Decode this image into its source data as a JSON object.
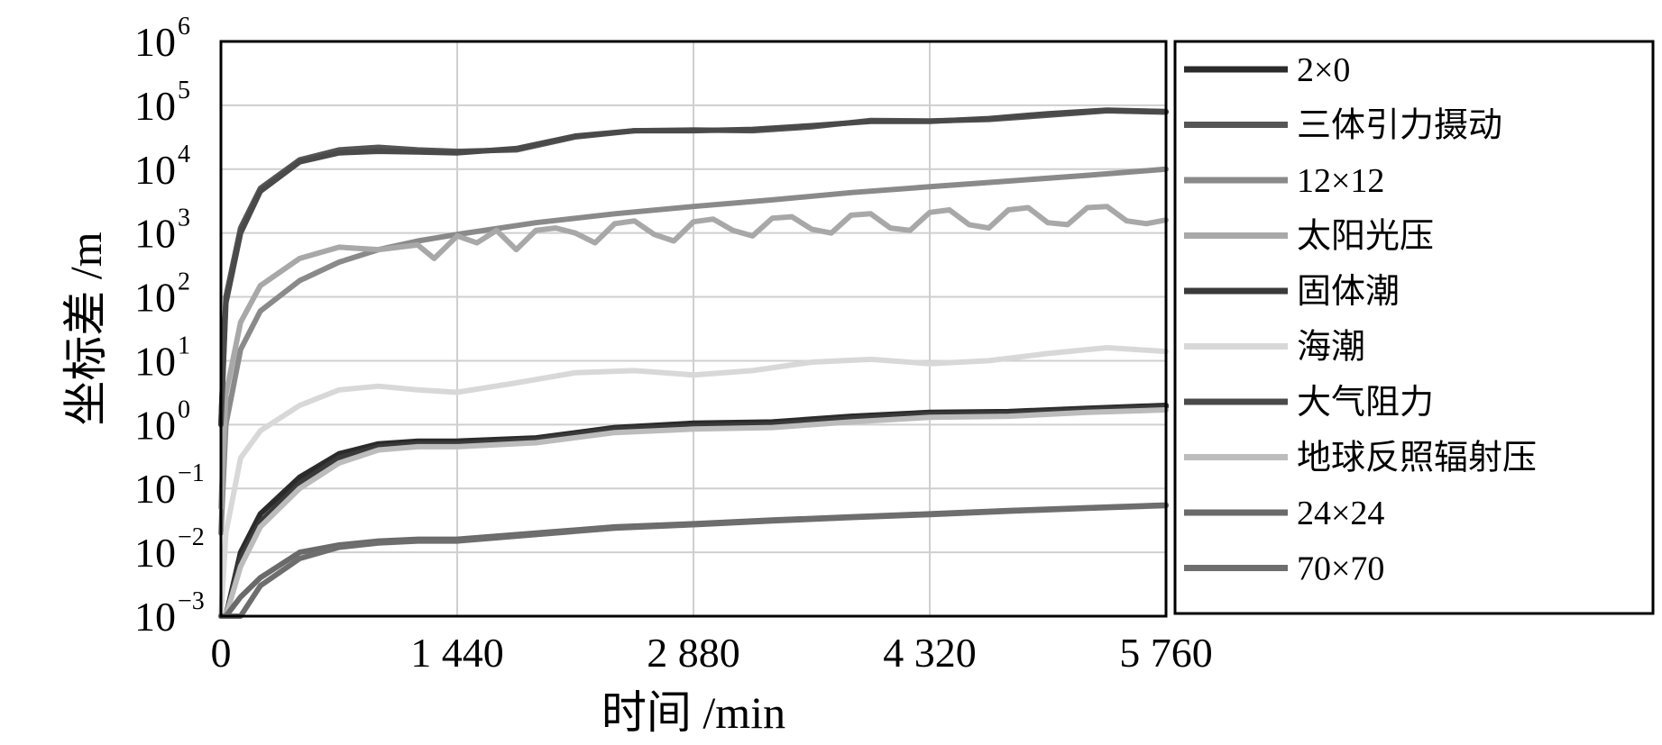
{
  "chart_data": {
    "type": "line",
    "title": "",
    "xlabel": "时间 /min",
    "ylabel": "坐标差 /m",
    "x_ticks": [
      0,
      1440,
      2880,
      4320,
      5760
    ],
    "x_tick_labels": [
      "0",
      "1 440",
      "2 880",
      "4 320",
      "5 760"
    ],
    "xlim": [
      0,
      5760
    ],
    "y_scale": "log",
    "ylim": [
      0.001,
      1000000
    ],
    "y_tick_exponents": [
      "−3",
      "−2",
      "−1",
      "0",
      "1",
      "2",
      "3",
      "4",
      "5",
      "6"
    ],
    "y_tick_base": "10",
    "grid": true,
    "legend_position": "outside-right",
    "series": [
      {
        "name": "2×0",
        "color": "#2b2b2b",
        "x": [
          0,
          30,
          120,
          240,
          480,
          720,
          960,
          1200,
          1440,
          1920,
          2400,
          2880,
          3360,
          3840,
          4320,
          4800,
          5280,
          5760
        ],
        "y": [
          0.001,
          0.001,
          0.01,
          0.04,
          0.15,
          0.35,
          0.5,
          0.55,
          0.55,
          0.62,
          0.9,
          1.05,
          1.1,
          1.35,
          1.55,
          1.6,
          1.8,
          2.0
        ]
      },
      {
        "name": "三体引力摄动",
        "color": "#555555",
        "x": [
          0,
          30,
          120,
          240,
          480,
          720,
          960,
          1200,
          1440,
          1800,
          2160,
          2520,
          2880,
          3240,
          3600,
          3960,
          4320,
          4680,
          5040,
          5400,
          5760
        ],
        "y": [
          1,
          100,
          1200,
          5000,
          14000,
          20000,
          22000,
          20000,
          19000,
          20000,
          32000,
          40000,
          41000,
          40000,
          46000,
          58000,
          57000,
          60000,
          70000,
          82000,
          78000
        ]
      },
      {
        "name": "12×12",
        "color": "#8a8a8a",
        "x": [
          0,
          30,
          120,
          240,
          480,
          720,
          960,
          1200,
          1440,
          1920,
          2400,
          2880,
          3360,
          3840,
          4320,
          4800,
          5280,
          5760
        ],
        "y": [
          0.02,
          1,
          15,
          60,
          180,
          350,
          550,
          750,
          950,
          1450,
          2000,
          2600,
          3300,
          4300,
          5300,
          6500,
          8000,
          10000
        ]
      },
      {
        "name": "太阳光压",
        "color": "#a8a8a8",
        "x": [
          0,
          30,
          120,
          240,
          480,
          720,
          960,
          1200,
          1300,
          1440,
          1560,
          1680,
          1800,
          1920,
          2040,
          2160,
          2280,
          2400,
          2520,
          2640,
          2760,
          2880,
          3000,
          3120,
          3240,
          3360,
          3480,
          3600,
          3720,
          3840,
          3960,
          4080,
          4200,
          4320,
          4440,
          4560,
          4680,
          4800,
          4920,
          5040,
          5160,
          5280,
          5400,
          5520,
          5640,
          5760
        ],
        "y": [
          0.05,
          3,
          40,
          150,
          400,
          600,
          550,
          650,
          400,
          900,
          700,
          1100,
          550,
          1100,
          1200,
          1000,
          700,
          1400,
          1550,
          950,
          750,
          1500,
          1650,
          1100,
          900,
          1700,
          1800,
          1150,
          1000,
          1900,
          2000,
          1200,
          1100,
          2100,
          2300,
          1350,
          1200,
          2300,
          2500,
          1450,
          1350,
          2500,
          2600,
          1550,
          1400,
          1600
        ]
      },
      {
        "name": "固体潮",
        "color": "#3a3a3a",
        "x": [
          0,
          30,
          120,
          240,
          480,
          720,
          960,
          1200,
          1440,
          1920,
          2400,
          2880,
          3360,
          3840,
          4320,
          4800,
          5280,
          5760
        ],
        "y": [
          0.001,
          0.001,
          0.008,
          0.03,
          0.12,
          0.3,
          0.45,
          0.5,
          0.5,
          0.58,
          0.85,
          0.95,
          1.0,
          1.25,
          1.45,
          1.5,
          1.7,
          1.9
        ]
      },
      {
        "name": "海潮",
        "color": "#d8d8d8",
        "x": [
          0,
          30,
          120,
          240,
          480,
          720,
          960,
          1200,
          1440,
          1800,
          2160,
          2520,
          2880,
          3240,
          3600,
          3960,
          4320,
          4680,
          5040,
          5400,
          5760
        ],
        "y": [
          0.001,
          0.02,
          0.3,
          0.8,
          2,
          3.5,
          4,
          3.5,
          3.2,
          4.5,
          6.5,
          7,
          6,
          7,
          9.5,
          10.5,
          9,
          10,
          13,
          16,
          14
        ]
      },
      {
        "name": "大气阻力",
        "color": "#4a4a4a",
        "x": [
          0,
          30,
          120,
          240,
          480,
          720,
          960,
          1200,
          1440,
          1800,
          2160,
          2520,
          2880,
          3240,
          3600,
          3960,
          4320,
          4680,
          5040,
          5400,
          5760
        ],
        "y": [
          1,
          80,
          1000,
          4500,
          13000,
          18000,
          19000,
          18500,
          18000,
          21000,
          33000,
          40000,
          40000,
          42000,
          48000,
          56000,
          56000,
          62000,
          74000,
          84000,
          80000
        ]
      },
      {
        "name": "地球反照辐射压",
        "color": "#bcbcbc",
        "x": [
          0,
          30,
          120,
          240,
          480,
          720,
          960,
          1200,
          1440,
          1920,
          2400,
          2880,
          3360,
          3840,
          4320,
          4800,
          5280,
          5760
        ],
        "y": [
          0.001,
          0.001,
          0.006,
          0.025,
          0.1,
          0.25,
          0.4,
          0.45,
          0.45,
          0.52,
          0.75,
          0.85,
          0.9,
          1.1,
          1.3,
          1.35,
          1.55,
          1.7
        ]
      },
      {
        "name": "24×24",
        "color": "#6a6a6a",
        "x": [
          0,
          30,
          120,
          240,
          480,
          720,
          960,
          1200,
          1440,
          1920,
          2400,
          2880,
          3360,
          3840,
          4320,
          4800,
          5280,
          5760
        ],
        "y": [
          0.001,
          0.001,
          0.002,
          0.004,
          0.01,
          0.013,
          0.015,
          0.016,
          0.016,
          0.02,
          0.025,
          0.028,
          0.032,
          0.036,
          0.04,
          0.045,
          0.05,
          0.055
        ]
      },
      {
        "name": "70×70",
        "color": "#6e6e6e",
        "x": [
          0,
          30,
          120,
          240,
          480,
          720,
          960,
          1200,
          1440,
          1920,
          2400,
          2880,
          3360,
          3840,
          4320,
          4800,
          5280,
          5760
        ],
        "y": [
          0.001,
          0.001,
          0.001,
          0.003,
          0.008,
          0.012,
          0.014,
          0.015,
          0.015,
          0.019,
          0.024,
          0.027,
          0.031,
          0.035,
          0.039,
          0.044,
          0.049,
          0.054
        ]
      }
    ]
  }
}
